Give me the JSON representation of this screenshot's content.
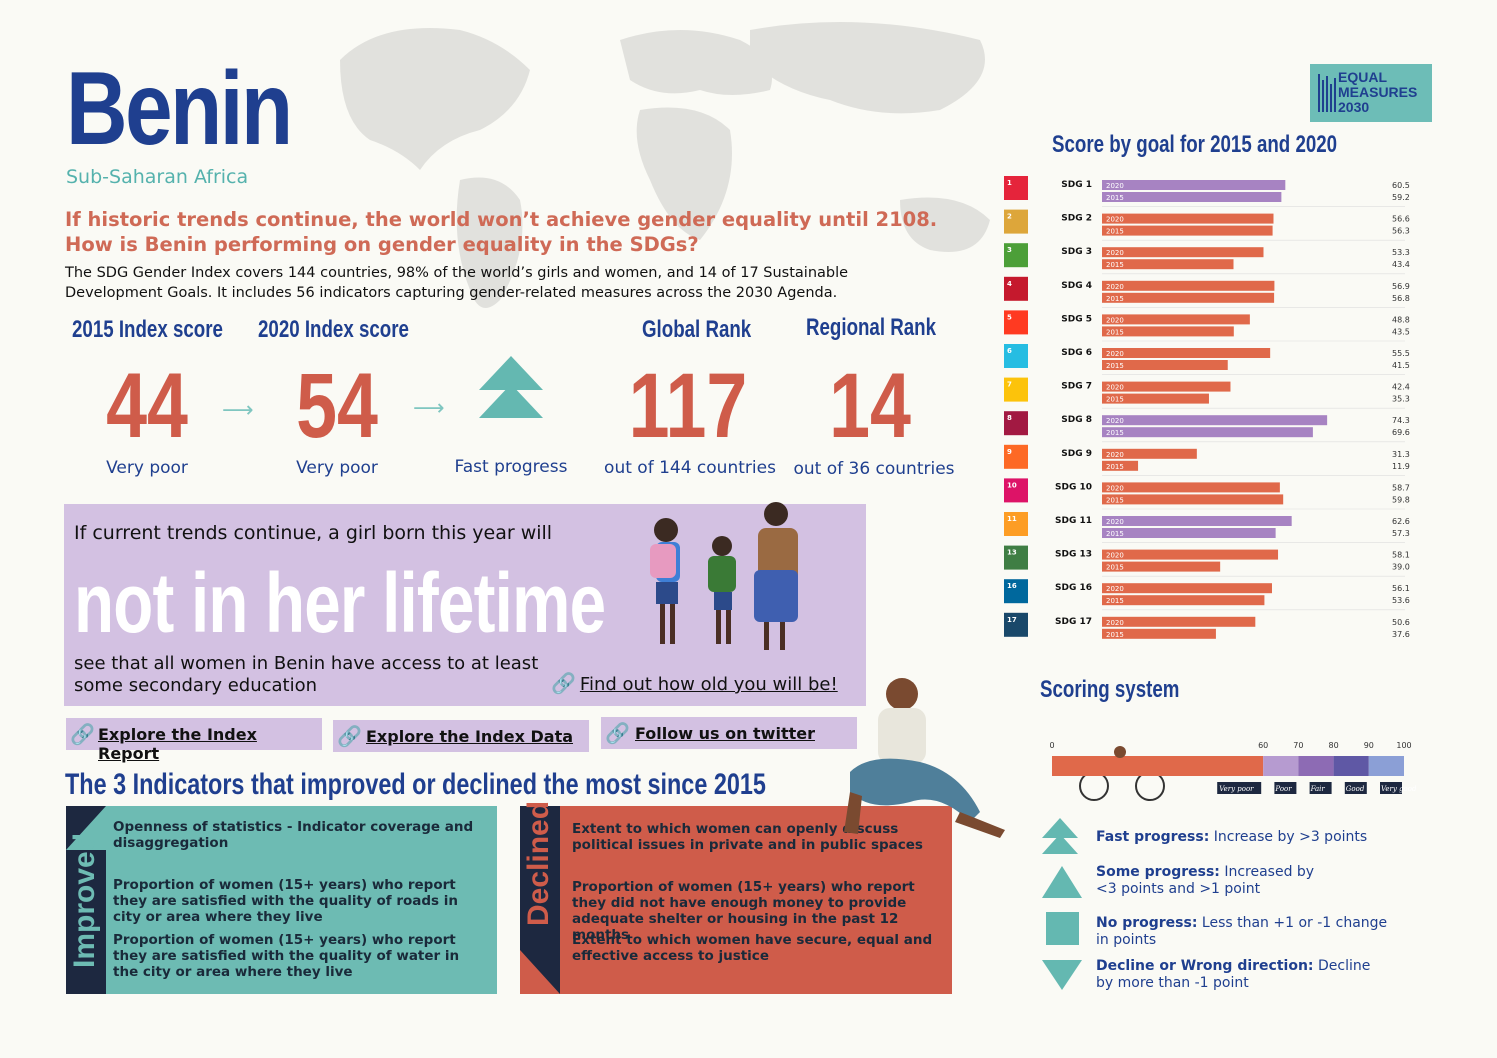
{
  "country": "Benin",
  "region": "Sub-Saharan Africa",
  "headline": {
    "line1": "If historic trends continue, the world won’t achieve gender equality until 2108.",
    "line2": "How is Benin performing on gender equality in the SDGs?"
  },
  "intro": "The SDG Gender Index covers 144 countries, 98% of the world’s girls and women, and 14 of 17 Sustainable Development Goals. It includes 56 indicators capturing gender-related measures across the 2030 Agenda.",
  "stats": {
    "score2015": {
      "label": "2015 Index score",
      "value": "44",
      "sub": "Very poor"
    },
    "score2020": {
      "label": "2020  Index score",
      "value": "54",
      "sub": "Very poor"
    },
    "progress": {
      "sub": "Fast progress"
    },
    "global": {
      "label": "Global Rank",
      "value": "117",
      "sub": "out of 144 countries"
    },
    "regional": {
      "label": "Regional Rank",
      "value": "14",
      "sub": "out of 36 countries"
    }
  },
  "girl": {
    "line1": "If current trends continue, a girl born this year will",
    "big": "not in her lifetime",
    "line2": "see that all women in Benin have access to at least some secondary education",
    "link": "Find out how old you will be!"
  },
  "links": {
    "report": "Explore the Index Report",
    "data": "Explore the Index Data",
    "twitter": "Follow us on twitter"
  },
  "indicators": {
    "title": "The 3 Indicators that improved or declined the most since 2015",
    "improved_label": "Improved",
    "declined_label": "Declined",
    "improved": [
      "Openness of statistics - Indicator coverage and disaggregation",
      "Proportion of women (15+ years) who report they are satisfied with the quality of roads in city or area where they live",
      "Proportion of women (15+ years)  who report they are satisfied with the quality of water in the city or area where they live"
    ],
    "declined": [
      "Extent to which women can openly discuss political issues in private and in public spaces",
      "Proportion of women (15+ years) who report they did not have enough money to provide adequate shelter or housing in the past 12 months",
      "Extent to which women have secure, equal and effective access to justice"
    ]
  },
  "logo": {
    "line1": "EQUAL",
    "line2": "MEASURES",
    "line3": "2030"
  },
  "chart_title": "Score by goal for 2015 and 2020",
  "chart_data": {
    "type": "bar",
    "orientation": "horizontal",
    "categories": [
      "SDG 1",
      "SDG 2",
      "SDG 3",
      "SDG 4",
      "SDG 5",
      "SDG 6",
      "SDG 7",
      "SDG 8",
      "SDG 9",
      "SDG 10",
      "SDG 11",
      "SDG 13",
      "SDG 16",
      "SDG 17"
    ],
    "series": [
      {
        "name": "2020",
        "values": [
          60.5,
          56.6,
          53.3,
          56.9,
          48.8,
          55.5,
          42.4,
          74.3,
          31.3,
          58.7,
          62.6,
          58.1,
          56.1,
          50.6
        ]
      },
      {
        "name": "2015",
        "values": [
          59.2,
          56.3,
          43.4,
          56.8,
          43.5,
          41.5,
          35.3,
          69.6,
          11.9,
          59.8,
          57.3,
          39.0,
          53.6,
          37.6
        ]
      }
    ],
    "xlim": [
      0,
      100
    ],
    "colors": {
      "default": "#e0694a",
      "highlight": "#a783c2"
    },
    "highlight_categories": [
      "SDG 1",
      "SDG 8",
      "SDG 11"
    ],
    "sdg_colors": [
      "#e5243b",
      "#dda63a",
      "#4c9f38",
      "#c5192d",
      "#ff3a21",
      "#26bde2",
      "#fcc30b",
      "#a21942",
      "#fd6925",
      "#dd1367",
      "#fd9d24",
      "#3f7e44",
      "#00689d",
      "#19486a"
    ],
    "sdg_numbers": [
      "1",
      "2",
      "3",
      "4",
      "5",
      "6",
      "7",
      "8",
      "9",
      "10",
      "11",
      "13",
      "16",
      "17"
    ]
  },
  "scoring": {
    "title": "Scoring system",
    "ticks": [
      "0",
      "60",
      "70",
      "80",
      "90",
      "100"
    ],
    "bands": [
      "Very poor",
      "Poor",
      "Fair",
      "Good",
      "Very good"
    ],
    "band_ranges": [
      [
        0,
        60
      ],
      [
        60,
        70
      ],
      [
        70,
        80
      ],
      [
        80,
        90
      ],
      [
        90,
        100
      ]
    ],
    "band_colors": [
      "#e0694a",
      "#b69bd0",
      "#8d6bb4",
      "#5f58a5",
      "#8b9fd6"
    ],
    "legend": [
      {
        "bold": "Fast progress:",
        "text": " Increase by >3 points"
      },
      {
        "bold": "Some progress:",
        "text": " Increased by <3 points and >1 point"
      },
      {
        "bold": "No progress:",
        "text": " Less than +1 or -1 change in points"
      },
      {
        "bold": "Decline or Wrong direction:",
        "text": " Decline by more than -1 point"
      }
    ]
  }
}
